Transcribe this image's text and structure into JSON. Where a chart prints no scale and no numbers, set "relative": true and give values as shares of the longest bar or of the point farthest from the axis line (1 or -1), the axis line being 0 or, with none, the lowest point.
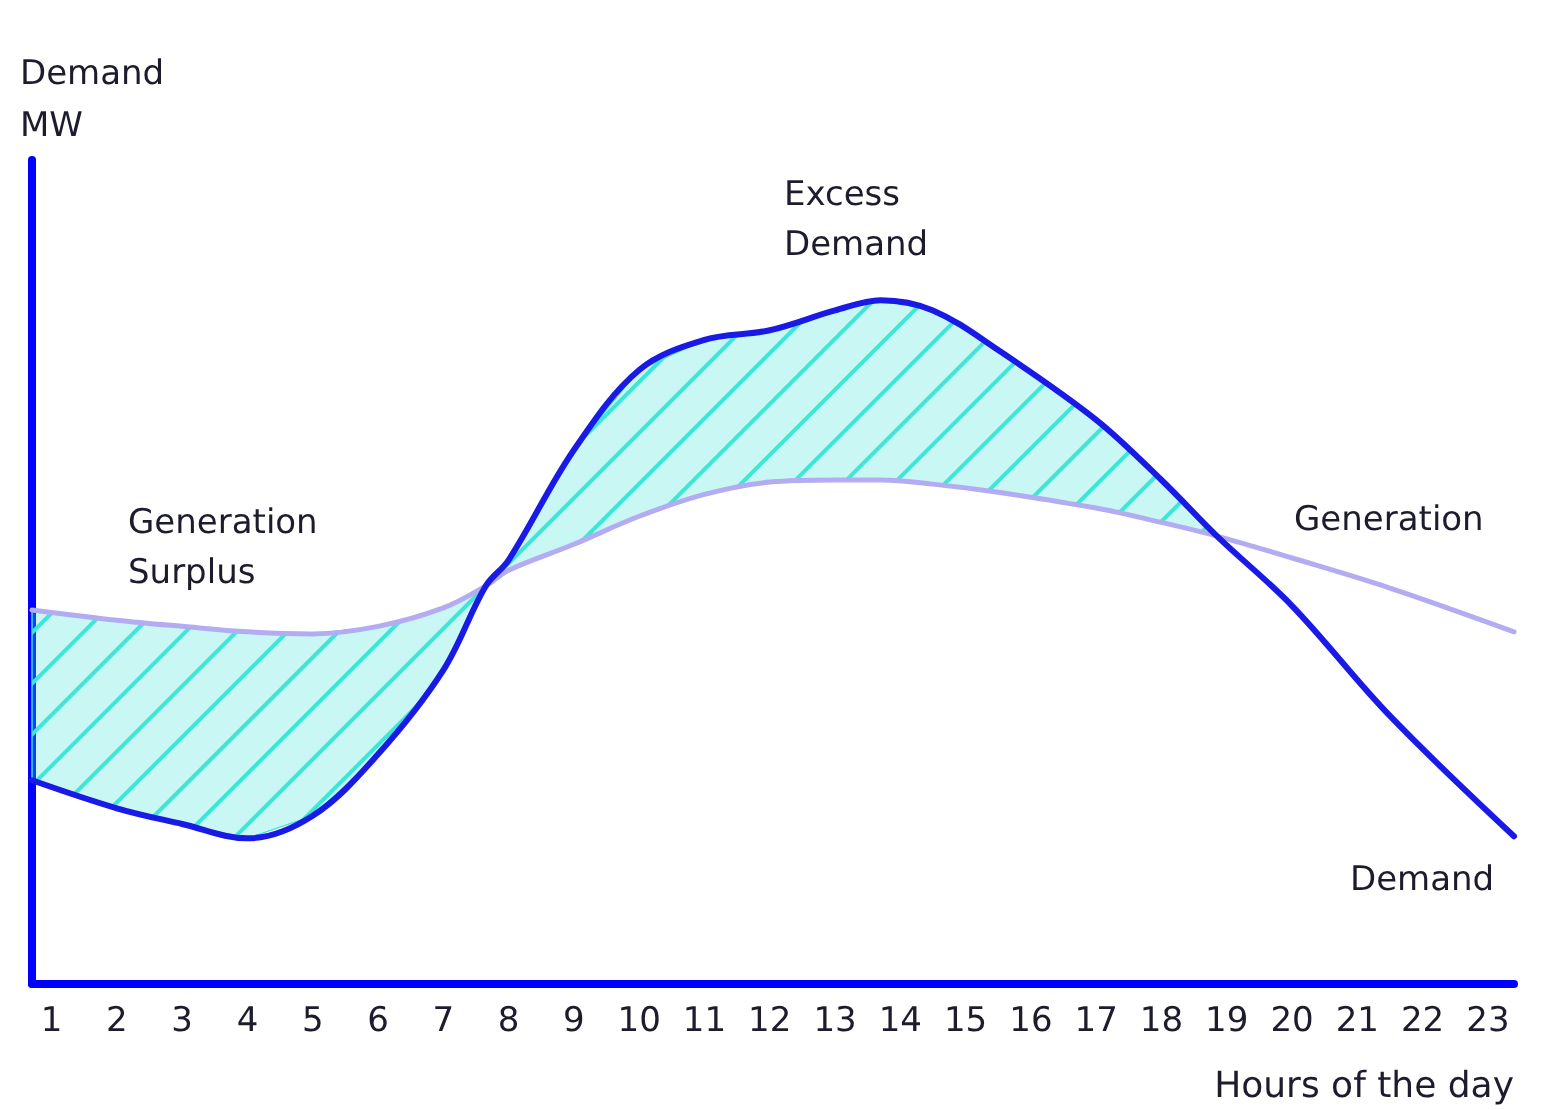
{
  "chart_data": {
    "type": "line",
    "relative": true,
    "ylabel": "Demand\nMW",
    "xlabel": "Hours of the day",
    "x": [
      0.7,
      2,
      3,
      4,
      5,
      6,
      7,
      7.65,
      8,
      9,
      10,
      11,
      12,
      13,
      13.7,
      14.5,
      15.5,
      17,
      18,
      18.85,
      20,
      21.5,
      23.4
    ],
    "xlim": [
      0.7,
      23.4
    ],
    "xticks": [
      1,
      2,
      3,
      4,
      5,
      6,
      7,
      8,
      9,
      10,
      11,
      12,
      13,
      14,
      15,
      16,
      17,
      18,
      19,
      20,
      21,
      22,
      23
    ],
    "series": [
      {
        "name": "Generation",
        "color": "#b3acf2",
        "values": [
          0.547,
          0.532,
          0.523,
          0.515,
          0.512,
          0.523,
          0.55,
          0.582,
          0.605,
          0.643,
          0.684,
          0.716,
          0.734,
          0.737,
          0.737,
          0.731,
          0.719,
          0.696,
          0.675,
          0.655,
          0.623,
          0.579,
          0.515
        ]
      },
      {
        "name": "Demand",
        "color": "#1a1ae6",
        "values": [
          0.298,
          0.257,
          0.234,
          0.213,
          0.246,
          0.336,
          0.459,
          0.582,
          0.62,
          0.781,
          0.898,
          0.942,
          0.956,
          0.985,
          1,
          0.985,
          0.927,
          0.825,
          0.737,
          0.655,
          0.553,
          0.392,
          0.216
        ],
        "lower": [
          0.298,
          0.257,
          0.234,
          0.213,
          0.246,
          0.336,
          0.459,
          0.582,
          0.605,
          0.643,
          0.684,
          0.716,
          0.734,
          0.737,
          0.737,
          0.731,
          0.719,
          0.696,
          0.675,
          0.655,
          0.553,
          0.392,
          0.216
        ],
        "upper": [
          0.547,
          0.532,
          0.523,
          0.515,
          0.512,
          0.523,
          0.55,
          0.582,
          0.62,
          0.781,
          0.898,
          0.942,
          0.956,
          0.985,
          1,
          0.985,
          0.927,
          0.825,
          0.737,
          0.655,
          0.553,
          0.392,
          0.216
        ]
      }
    ],
    "annotations": [
      "Generation\nSurplus",
      "Excess\nDemand"
    ],
    "grid": false,
    "legend": false,
    "marker": "none",
    "line_style": "solid"
  }
}
